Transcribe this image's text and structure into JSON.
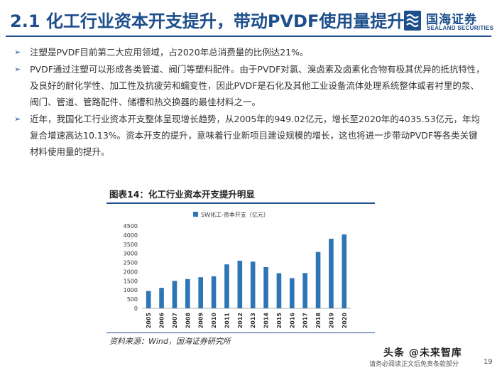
{
  "slide": {
    "title": "2.1 化工行业资本开支提升，带动PVDF使用量提升"
  },
  "logo": {
    "name_cn": "国海证券",
    "name_en": "SEALAND SECURITIES"
  },
  "bullets": [
    "注塑是PVDF目前第二大应用领域，占2020年总消费量的比例达21%。",
    "PVDF通过注塑可以形成各类管道、阀门等塑料配件。由于PVDF对氯、溴卤素及卤素化合物有极其优异的抵抗特性，及良好的耐化学性、加工性及抗疲劳和蠕变性，因此PVDF是石化及其他工业设备流体处理系统整体或者衬里的泵、阀门、管道、管路配件、储槽和热交换器的最佳材料之一。",
    "近年，我国化工行业资本开支整体呈现增长趋势，从2005年的949.02亿元，增长至2020年的4035.53亿元，年均复合增速高达10.13%。资本开支的提升，意味着行业新项目建设规模的增长，这也将进一步带动PVDF等各类关键材料使用量的提升。"
  ],
  "figure": {
    "title": "图表14：化工行业资本开支提升明显",
    "source": "资料来源：Wind，国海证券研究所"
  },
  "chart_data": {
    "type": "bar",
    "categories": [
      "2005",
      "2006",
      "2007",
      "2008",
      "2009",
      "2010",
      "2011",
      "2012",
      "2013",
      "2014",
      "2015",
      "2016",
      "2017",
      "2018",
      "2019",
      "2020"
    ],
    "series": [
      {
        "name": "SW化工-资本开支（亿元）",
        "values": [
          949.02,
          1120,
          1500,
          1600,
          1700,
          1750,
          2400,
          2600,
          2550,
          2250,
          1920,
          1650,
          1930,
          3080,
          3800,
          4035.53
        ],
        "color": "#2e75b6"
      }
    ],
    "ylim": [
      0,
      4500
    ],
    "yticks": [
      0,
      500,
      1000,
      1500,
      2000,
      2500,
      3000,
      3500,
      4000,
      4500
    ],
    "legend": "top-left",
    "grid": false
  },
  "footer": {
    "watermark": "头条 @未来智库",
    "note": "请务必阅读正文后免责条款部分",
    "page": "19"
  },
  "colors": {
    "brand": "#1d4f8c",
    "bar": "#2e75b6"
  }
}
